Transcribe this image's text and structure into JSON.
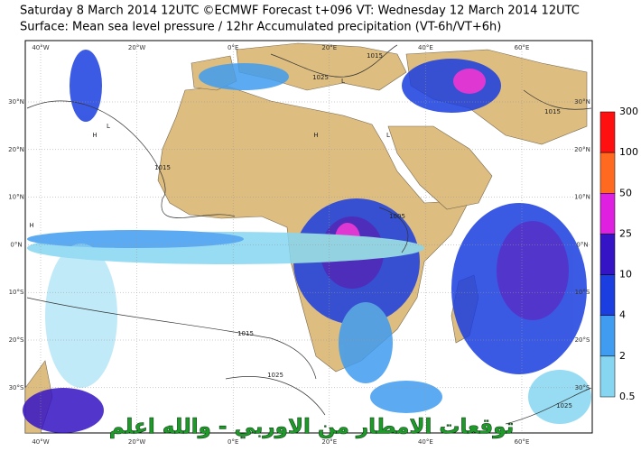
{
  "header": {
    "line1": "Saturday 8 March 2014 12UTC ©ECMWF Forecast t+096 VT: Wednesday 12 March 2014 12UTC",
    "line2": "Surface: Mean sea level pressure / 12hr Accumulated precipitation (VT-6h/VT+6h)"
  },
  "map": {
    "lon_labels": [
      "40°W",
      "20°W",
      "0°E",
      "20°E",
      "40°E",
      "60°E"
    ],
    "lat_labels": [
      "30°N",
      "20°N",
      "10°N",
      "0°N",
      "10°S",
      "20°S",
      "30°S"
    ],
    "isobar_labels": [
      "1015",
      "1025",
      "1015",
      "1005",
      "1015",
      "1025",
      "1025",
      "1015"
    ],
    "pressure_marks": [
      "H",
      "L",
      "H",
      "L",
      "L",
      "H"
    ]
  },
  "legend": {
    "levels": [
      "300",
      "100",
      "50",
      "25",
      "10",
      "4",
      "2",
      "0.5"
    ],
    "colors": [
      "#ff1010",
      "#ff6a20",
      "#e020e0",
      "#3414c4",
      "#1a3ee0",
      "#3f9cf0",
      "#86d6f2"
    ]
  },
  "caption": "توقعات الامطار من الاوربي - والله اعلم"
}
